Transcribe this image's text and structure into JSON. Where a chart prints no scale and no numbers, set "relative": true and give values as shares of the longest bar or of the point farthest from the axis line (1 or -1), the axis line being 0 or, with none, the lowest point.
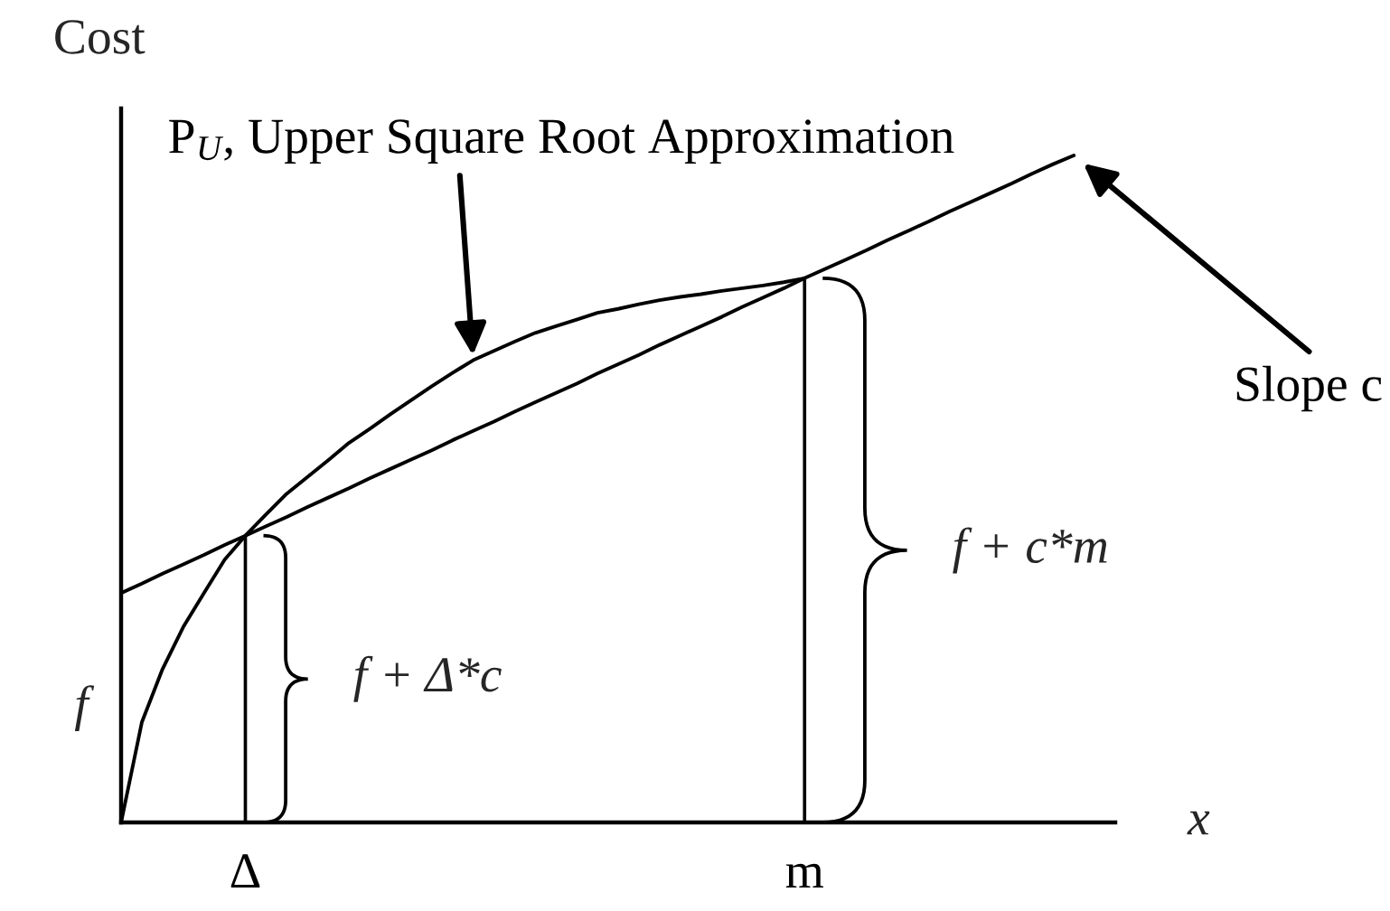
{
  "chart_data": {
    "type": "line",
    "relative": true,
    "xlabel": "x",
    "ylabel": "Cost",
    "categories": [
      null,
      null,
      null,
      null,
      null,
      null,
      "Δ",
      null,
      null,
      null,
      null,
      null,
      null,
      null,
      null,
      null,
      null,
      null,
      null,
      null,
      null,
      null,
      null,
      null,
      null,
      null,
      null,
      null,
      null,
      null,
      null,
      null,
      null,
      "m",
      null,
      null,
      null,
      null,
      null,
      null,
      null,
      null,
      null,
      null,
      null,
      null,
      null,
      null,
      null
    ],
    "series": [
      {
        "name": "P$_{U}$, Upper Square Root Approximation",
        "color": "#000000",
        "values": [
          0,
          0.15,
          0.23,
          0.293,
          0.344,
          0.394,
          0.43,
          0.462,
          0.493,
          0.518,
          0.543,
          0.569,
          0.59,
          0.612,
          0.633,
          0.654,
          0.674,
          0.693,
          0.707,
          0.721,
          0.734,
          0.744,
          0.754,
          0.764,
          0.77,
          0.777,
          0.783,
          0.788,
          0.792,
          0.797,
          0.801,
          0.805,
          0.81,
          0.816,
          null,
          null,
          null,
          null,
          null,
          null,
          null,
          null,
          null,
          null,
          null,
          null,
          null,
          null,
          null
        ]
      },
      {
        "name": "Slope c",
        "color": "#000000",
        "values": [
          0.344,
          0.358,
          0.373,
          0.387,
          0.401,
          0.416,
          0.43,
          0.444,
          0.458,
          0.473,
          0.487,
          0.501,
          0.516,
          0.53,
          0.544,
          0.558,
          0.573,
          0.587,
          0.601,
          0.616,
          0.63,
          0.644,
          0.658,
          0.673,
          0.687,
          0.701,
          0.716,
          0.73,
          0.744,
          0.758,
          0.773,
          0.787,
          0.801,
          0.816,
          0.83,
          0.844,
          0.858,
          0.873,
          0.887,
          0.901,
          0.916,
          0.93,
          0.944,
          0.958,
          0.973,
          0.987,
          1.0,
          null,
          null
        ]
      },
      {
        "type": "bar",
        "color": "#000000",
        "values": [
          null,
          null,
          null,
          null,
          null,
          null,
          0.43,
          null,
          null,
          null,
          null,
          null,
          null,
          null,
          null,
          null,
          null,
          null,
          null,
          null,
          null,
          null,
          null,
          null,
          null,
          null,
          null,
          null,
          null,
          null,
          null,
          null,
          null,
          0.816,
          null,
          null,
          null,
          null,
          null,
          null,
          null,
          null,
          null,
          null,
          null,
          null,
          null,
          null,
          null
        ]
      }
    ],
    "annotations": [
      "f + Δ*c",
      "f + c*m",
      "f"
    ]
  }
}
